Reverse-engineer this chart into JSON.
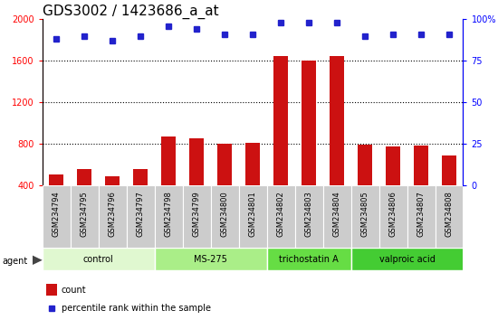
{
  "title": "GDS3002 / 1423686_a_at",
  "samples": [
    "GSM234794",
    "GSM234795",
    "GSM234796",
    "GSM234797",
    "GSM234798",
    "GSM234799",
    "GSM234800",
    "GSM234801",
    "GSM234802",
    "GSM234803",
    "GSM234804",
    "GSM234805",
    "GSM234806",
    "GSM234807",
    "GSM234808"
  ],
  "bar_values": [
    510,
    560,
    490,
    555,
    870,
    855,
    800,
    810,
    1650,
    1600,
    1650,
    790,
    780,
    785,
    690
  ],
  "dot_values": [
    88,
    90,
    87,
    90,
    96,
    94,
    91,
    91,
    98,
    98,
    98,
    90,
    91,
    91,
    91
  ],
  "bar_color": "#cc1111",
  "dot_color": "#2222cc",
  "bar_bottom": 400,
  "ylim_left": [
    400,
    2000
  ],
  "ylim_right": [
    0,
    100
  ],
  "yticks_left": [
    400,
    800,
    1200,
    1600,
    2000
  ],
  "yticks_right": [
    0,
    25,
    50,
    75,
    100
  ],
  "groups": [
    {
      "label": "control",
      "start": 0,
      "end": 3,
      "color": "#e0f8d0"
    },
    {
      "label": "MS-275",
      "start": 4,
      "end": 7,
      "color": "#aaee88"
    },
    {
      "label": "trichostatin A",
      "start": 8,
      "end": 10,
      "color": "#66dd44"
    },
    {
      "label": "valproic acid",
      "start": 11,
      "end": 14,
      "color": "#44cc33"
    }
  ],
  "sample_bg_color": "#cccccc",
  "title_fontsize": 11,
  "tick_fontsize": 7,
  "label_fontsize": 6,
  "group_fontsize": 7,
  "legend_count_label": "count",
  "legend_pct_label": "percentile rank within the sample",
  "agent_label": "agent"
}
